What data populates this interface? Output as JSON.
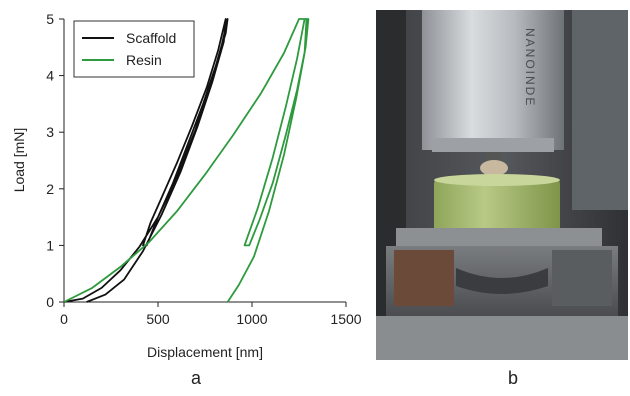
{
  "panel_labels": {
    "left": "a",
    "right": "b"
  },
  "chart_data": {
    "type": "line",
    "title": "",
    "xlabel": "Displacement [nm]",
    "ylabel": "Load [mN]",
    "xlim": [
      0,
      1500
    ],
    "ylim": [
      0,
      5
    ],
    "x_ticks": [
      0,
      500,
      1000,
      1500
    ],
    "y_ticks": [
      0,
      1,
      2,
      3,
      4,
      5
    ],
    "grid": false,
    "legend_position": "top-left",
    "series": [
      {
        "name": "Scaffold",
        "color": "#111111",
        "loading": [
          [
            0,
            0
          ],
          [
            100,
            0.06
          ],
          [
            200,
            0.25
          ],
          [
            300,
            0.56
          ],
          [
            400,
            0.97
          ],
          [
            500,
            1.5
          ],
          [
            600,
            2.2
          ],
          [
            700,
            3.05
          ],
          [
            780,
            3.85
          ],
          [
            840,
            4.55
          ],
          [
            870,
            5
          ]
        ],
        "unload_to_hold": [
          [
            870,
            5
          ],
          [
            860,
            4.75
          ],
          [
            810,
            4.2
          ],
          [
            740,
            3.5
          ],
          [
            660,
            2.8
          ],
          [
            580,
            2.1
          ],
          [
            500,
            1.5
          ],
          [
            440,
            1.0
          ]
        ],
        "hold": [
          [
            440,
            1.0
          ],
          [
            420,
            1.0
          ]
        ],
        "reload": [
          [
            420,
            1.0
          ],
          [
            460,
            1.4
          ],
          [
            520,
            1.85
          ],
          [
            600,
            2.45
          ],
          [
            680,
            3.1
          ],
          [
            760,
            3.8
          ],
          [
            820,
            4.45
          ],
          [
            860,
            5
          ]
        ],
        "final_unload": [
          [
            860,
            5
          ],
          [
            850,
            4.6
          ],
          [
            790,
            3.9
          ],
          [
            710,
            3.1
          ],
          [
            620,
            2.3
          ],
          [
            520,
            1.55
          ],
          [
            420,
            0.9
          ],
          [
            320,
            0.4
          ],
          [
            220,
            0.13
          ],
          [
            120,
            0
          ]
        ]
      },
      {
        "name": "Resin",
        "color": "#2e9a3e",
        "loading": [
          [
            0,
            0
          ],
          [
            150,
            0.25
          ],
          [
            300,
            0.62
          ],
          [
            450,
            1.05
          ],
          [
            600,
            1.6
          ],
          [
            750,
            2.25
          ],
          [
            900,
            2.95
          ],
          [
            1050,
            3.7
          ],
          [
            1170,
            4.4
          ],
          [
            1250,
            5
          ],
          [
            1300,
            5
          ]
        ],
        "unload_to_hold": [
          [
            1300,
            5
          ],
          [
            1285,
            4.5
          ],
          [
            1240,
            3.75
          ],
          [
            1180,
            2.95
          ],
          [
            1110,
            2.1
          ],
          [
            1040,
            1.45
          ],
          [
            985,
            1.0
          ]
        ],
        "hold": [
          [
            985,
            1.0
          ],
          [
            960,
            1.0
          ]
        ],
        "reload": [
          [
            960,
            1.0
          ],
          [
            1030,
            1.65
          ],
          [
            1110,
            2.55
          ],
          [
            1180,
            3.45
          ],
          [
            1240,
            4.3
          ],
          [
            1280,
            5
          ]
        ],
        "final_unload": [
          [
            1290,
            5
          ],
          [
            1280,
            4.4
          ],
          [
            1235,
            3.6
          ],
          [
            1170,
            2.6
          ],
          [
            1090,
            1.6
          ],
          [
            1010,
            0.8
          ],
          [
            930,
            0.3
          ],
          [
            870,
            0
          ]
        ]
      }
    ]
  }
}
